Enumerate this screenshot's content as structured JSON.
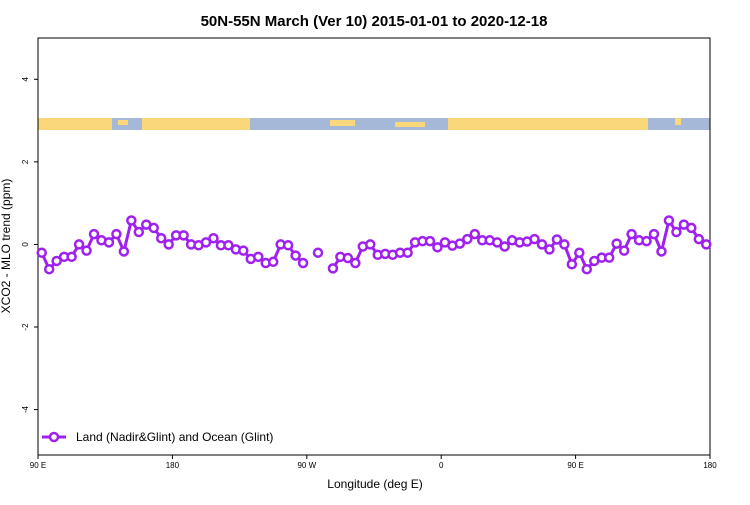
{
  "chart_data": {
    "type": "line",
    "title": "50N-55N March (Ver 10)   2015-01-01 to 2020-12-18",
    "x_label": "Longitude (deg E)",
    "y_label": "XCO2 - MLO trend (ppm)",
    "x": [
      92.5,
      97.5,
      102.5,
      107.5,
      112.5,
      117.5,
      122.5,
      127.5,
      132.5,
      137.5,
      142.5,
      147.5,
      152.5,
      157.5,
      162.5,
      167.5,
      172.5,
      177.5,
      182.5,
      187.5,
      192.5,
      197.5,
      202.5,
      207.5,
      212.5,
      217.5,
      222.5,
      227.5,
      232.5,
      237.5,
      242.5,
      247.5,
      252.5,
      257.5,
      262.5,
      267.5,
      272.5,
      277.5,
      282.5,
      287.5,
      292.5,
      297.5,
      302.5,
      307.5,
      312.5,
      317.5,
      322.5,
      327.5,
      332.5,
      337.5,
      342.5,
      347.5,
      352.5,
      357.5,
      362.5,
      367.5,
      372.5,
      377.5,
      382.5,
      387.5,
      392.5,
      397.5,
      402.5,
      407.5,
      412.5,
      417.5,
      422.5,
      427.5,
      432.5,
      437.5,
      442.5,
      447.5,
      452.5,
      457.5,
      462.5,
      467.5,
      472.5,
      477.5,
      482.5,
      487.5,
      492.5,
      497.5,
      502.5,
      507.5,
      512.5,
      517.5,
      522.5,
      527.5,
      532.5,
      537.5
    ],
    "series": [
      {
        "name": "Land (Nadir&Glint) and Ocean (Glint)",
        "color": "#a020f0",
        "values": [
          -0.2,
          -0.6,
          -0.4,
          -0.3,
          -0.3,
          0.0,
          -0.15,
          0.25,
          0.1,
          0.05,
          0.25,
          -0.17,
          0.58,
          0.3,
          0.48,
          0.4,
          0.15,
          0.0,
          0.22,
          0.22,
          0.0,
          -0.02,
          0.05,
          0.15,
          -0.02,
          -0.02,
          -0.12,
          -0.15,
          -0.35,
          -0.3,
          -0.45,
          -0.42,
          0.0,
          -0.02,
          -0.27,
          -0.45,
          null,
          -0.2,
          null,
          -0.58,
          -0.3,
          -0.33,
          -0.45,
          -0.05,
          0.0,
          -0.25,
          -0.23,
          -0.25,
          -0.2,
          -0.2,
          0.05,
          0.08,
          0.08,
          -0.07,
          0.05,
          -0.03,
          0.02,
          0.13,
          0.25,
          0.1,
          0.1,
          0.05,
          -0.05,
          0.1,
          0.05,
          0.07,
          0.13,
          0.0,
          -0.12,
          0.12,
          0.0,
          -0.48,
          -0.2,
          -0.6,
          -0.4,
          -0.32,
          -0.32,
          0.02,
          -0.15,
          0.25,
          0.1,
          0.08,
          0.25,
          -0.17,
          0.58,
          0.3,
          0.48,
          0.4,
          0.13,
          0.0
        ]
      }
    ],
    "xlim": [
      90,
      540
    ],
    "xticks": [
      {
        "value": 90,
        "label": "90 E"
      },
      180,
      {
        "value": 270,
        "label": "90 W"
      },
      {
        "value": 360,
        "label": "0"
      },
      {
        "value": 450,
        "label": "90 E"
      },
      {
        "value": 540,
        "label": "180"
      }
    ],
    "ylim": [
      -5.1,
      5
    ],
    "yticks": [
      -4,
      -2,
      0,
      2,
      4
    ],
    "legend": "bottom-left"
  }
}
